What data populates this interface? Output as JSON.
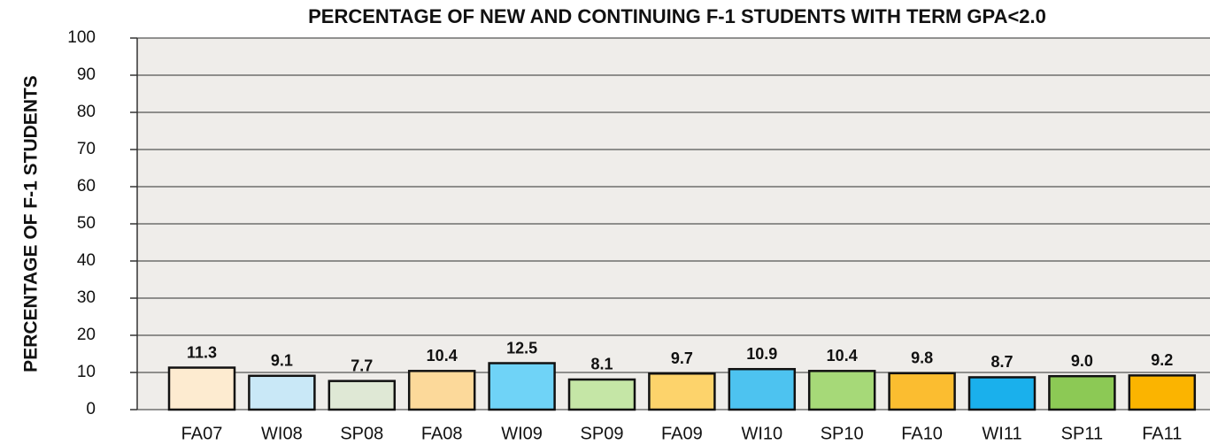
{
  "chart_data": {
    "type": "bar",
    "title": "PERCENTAGE OF NEW AND CONTINUING F-1 STUDENTS WITH TERM GPA<2.0",
    "y_label": "PERCENTAGE OF F-1 STUDENTS",
    "categories": [
      "FA07",
      "WI08",
      "SP08",
      "FA08",
      "WI09",
      "SP09",
      "FA09",
      "WI10",
      "SP10",
      "FA10",
      "WI11",
      "SP11",
      "FA11"
    ],
    "values": [
      11.3,
      9.1,
      7.7,
      10.4,
      12.5,
      8.1,
      9.7,
      10.9,
      10.4,
      9.8,
      8.7,
      9.0,
      9.2
    ],
    "value_labels": [
      "11.3",
      "9.1",
      "7.7",
      "10.4",
      "12.5",
      "8.1",
      "9.7",
      "10.9",
      "10.4",
      "9.8",
      "8.7",
      "9.0",
      "9.2"
    ],
    "colors": [
      "#fdebd0",
      "#c9e8f7",
      "#dfe8d5",
      "#fcd99a",
      "#6fd3f7",
      "#c5e6a6",
      "#fdd36b",
      "#4dc3f0",
      "#a6d978",
      "#fbbd30",
      "#1ab0ec",
      "#8cc955",
      "#fbb400"
    ],
    "ylim": [
      0,
      100
    ],
    "yticks": [
      0,
      10,
      20,
      30,
      40,
      50,
      60,
      70,
      80,
      90,
      100
    ],
    "grid": true
  }
}
